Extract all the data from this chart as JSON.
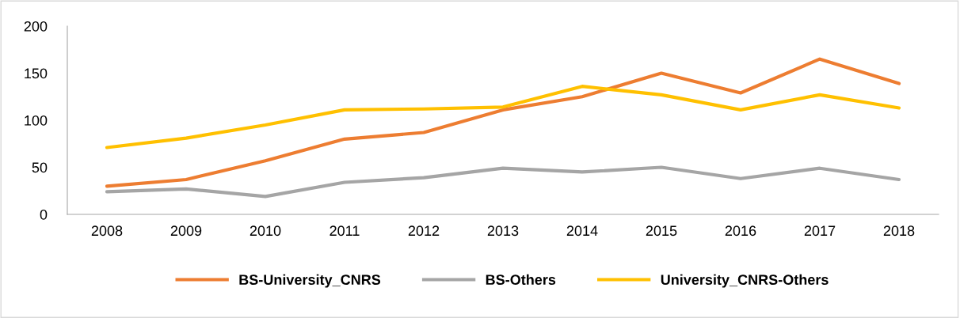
{
  "chart_data": {
    "type": "line",
    "categories": [
      "2008",
      "2009",
      "2010",
      "2011",
      "2012",
      "2013",
      "2014",
      "2015",
      "2016",
      "2017",
      "2018"
    ],
    "series": [
      {
        "name": "BS-University_CNRS",
        "color": "#ed7d31",
        "values": [
          30,
          37,
          57,
          80,
          87,
          111,
          125,
          150,
          129,
          165,
          139
        ]
      },
      {
        "name": "BS-Others",
        "color": "#a5a5a5",
        "values": [
          24,
          27,
          19,
          34,
          39,
          49,
          45,
          50,
          38,
          49,
          37
        ]
      },
      {
        "name": "University_CNRS-Others",
        "color": "#ffc000",
        "values": [
          71,
          81,
          95,
          111,
          112,
          114,
          136,
          127,
          111,
          127,
          113
        ]
      }
    ],
    "ylim": [
      0,
      200
    ],
    "yticks": [
      0,
      50,
      100,
      150,
      200
    ],
    "grid": false,
    "legend": "bottom",
    "marker": "none",
    "line_style": "solid"
  }
}
